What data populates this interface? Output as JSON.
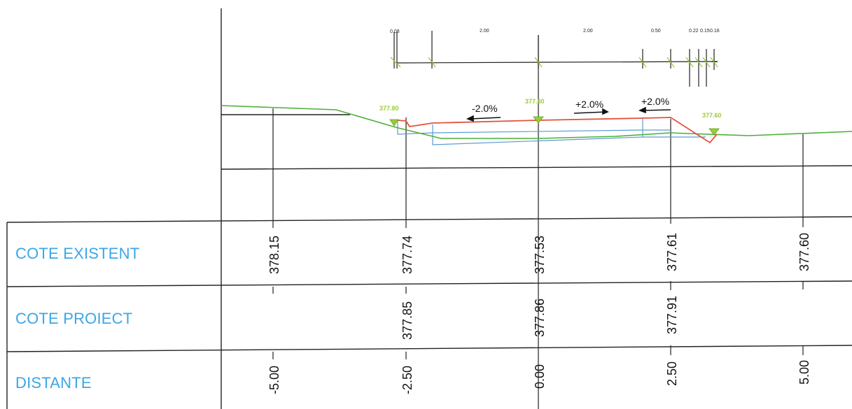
{
  "table": {
    "rows": [
      {
        "label": "COTE EXISTENT"
      },
      {
        "label": "COTE PROIECT"
      },
      {
        "label": "DISTANTE"
      }
    ],
    "existent": [
      "378.15",
      "377.74",
      "377.53",
      "377.61",
      "377.60"
    ],
    "proiect": [
      "377.85",
      "377.86",
      "377.91"
    ],
    "distante": [
      "-5.00",
      "-2.50",
      "0.00",
      "2.50",
      "5.00"
    ]
  },
  "profile": {
    "slopes": [
      "-2.0%",
      "+2.0%",
      "+2.0%"
    ],
    "elevation_markers": [
      "377.80",
      "377.80",
      "377.60"
    ],
    "width_dims": [
      "0.08",
      "2.00",
      "2.00",
      "0.50",
      "0.22",
      "0.15",
      "0.16"
    ]
  },
  "colors": {
    "existing_terrain": "#4caf3a",
    "design_surface": "#e2533f",
    "layers": "#5b9bd5",
    "labels": "#3aa6e8",
    "markers": "#9acd32",
    "lines": "#222222"
  }
}
